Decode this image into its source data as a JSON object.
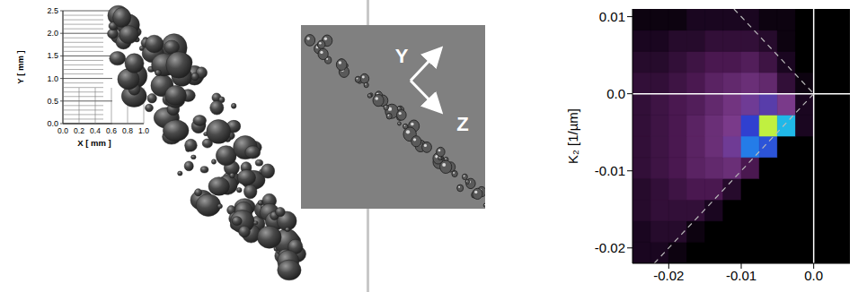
{
  "render_3d": {
    "x_label": "X [ mm ]",
    "y_label": "Y [ mm ]",
    "xlim": [
      0,
      1
    ],
    "ylim": [
      0,
      2.5
    ],
    "xticks": [
      {
        "value": 0,
        "label": "0.0"
      },
      0.2,
      0.4,
      0.6,
      0.8,
      {
        "value": 1,
        "label": "1.0"
      }
    ],
    "yticks": [
      {
        "value": 0,
        "label": "0.0"
      },
      0.5,
      {
        "value": 1,
        "label": "1.0"
      },
      1.5,
      {
        "value": 2,
        "label": "2.0"
      },
      2.5
    ]
  },
  "image": {
    "axis_labels": [
      "Y",
      "Z"
    ]
  },
  "chart_data": {
    "type": "heatmap",
    "y_label": "K₂ [1/µm]",
    "xlim": [
      -0.025,
      0.005
    ],
    "ylim": [
      -0.022,
      0.011
    ],
    "xticks": [
      -0.02,
      -0.01,
      {
        "value": 0,
        "label": "0.0"
      }
    ],
    "yticks": [
      0.01,
      {
        "value": 0,
        "label": "0.0"
      },
      -0.01,
      -0.02
    ],
    "x_edges": [
      -0.025,
      -0.0225,
      -0.02,
      -0.0175,
      -0.015,
      -0.0125,
      -0.01,
      -0.0075,
      -0.005,
      -0.0025,
      0,
      0.0025,
      0.005
    ],
    "y_edges": [
      -0.022,
      -0.01925,
      -0.0165,
      -0.01375,
      -0.011,
      -0.00825,
      -0.0055,
      -0.00275,
      0,
      0.00275,
      0.0055,
      0.00825,
      0.011
    ],
    "cells": [
      [
        2,
        2,
        1,
        0,
        0,
        0,
        0,
        0,
        0,
        0,
        0,
        0
      ],
      [
        2,
        3,
        3,
        1,
        0,
        0,
        0,
        0,
        0,
        0,
        0,
        0
      ],
      [
        3,
        4,
        4,
        4,
        2,
        0,
        0,
        0,
        0,
        0,
        0,
        0
      ],
      [
        3,
        4,
        5,
        6,
        6,
        3,
        0,
        0,
        0,
        0,
        0,
        0
      ],
      [
        4,
        5,
        6,
        8,
        9,
        10,
        6,
        0,
        0,
        0,
        0,
        0
      ],
      [
        4,
        5,
        6,
        8,
        10,
        14,
        40,
        30,
        0,
        0,
        0,
        0
      ],
      [
        4,
        5,
        6,
        8,
        10,
        12,
        25,
        100,
        55,
        2,
        0,
        0
      ],
      [
        4,
        5,
        6,
        7,
        9,
        11,
        14,
        18,
        12,
        2,
        0,
        0
      ],
      [
        4,
        4,
        5,
        6,
        8,
        9,
        10,
        9,
        4,
        1,
        0,
        0
      ],
      [
        3,
        3,
        4,
        5,
        6,
        6,
        7,
        5,
        2,
        0,
        0,
        0
      ],
      [
        2,
        2,
        3,
        3,
        4,
        4,
        4,
        3,
        1,
        0,
        0,
        0
      ],
      [
        1,
        1,
        1,
        2,
        2,
        2,
        2,
        1,
        1,
        0,
        0,
        0
      ]
    ],
    "color_range": [
      0,
      100
    ],
    "lines": [
      {
        "points": [
          [
            0,
            -0.022
          ],
          [
            0,
            0.011
          ]
        ],
        "line_style": "solid",
        "color": "#ffffff"
      },
      {
        "points": [
          [
            -0.025,
            0
          ],
          [
            0.005,
            0
          ]
        ],
        "line_style": "solid",
        "color": "#ffffff"
      },
      {
        "points": [
          [
            -0.022,
            -0.022
          ],
          [
            0,
            0
          ]
        ],
        "line_style": "dashed",
        "color": "#bbbbbb"
      },
      {
        "points": [
          [
            -0.011,
            0.011
          ],
          [
            0,
            0
          ]
        ],
        "line_style": "dashed",
        "color": "#bbbbbb"
      }
    ]
  }
}
